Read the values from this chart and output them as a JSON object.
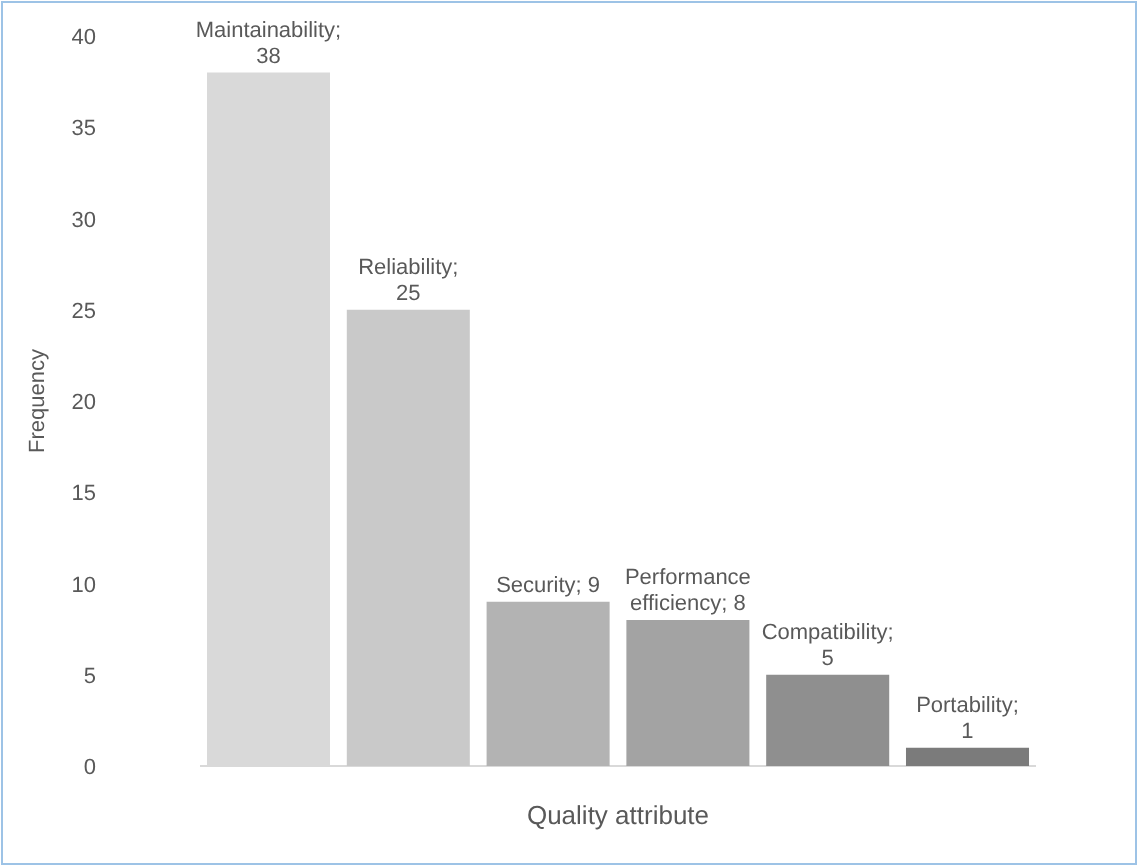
{
  "chart_data": {
    "type": "bar",
    "xlabel": "Quality attribute",
    "ylabel": "Frequency",
    "categories": [
      null,
      null,
      null,
      null,
      null,
      null
    ],
    "values": [
      38,
      25,
      9,
      8,
      5,
      1
    ],
    "colors": [
      "#d9d9d9",
      "#c9c9c9",
      "#b3b3b3",
      "#a3a3a3",
      "#8f8f8f",
      "#7b7b7b"
    ],
    "value_labels": [
      "Maintainability; 38",
      "Reliability; 25",
      "Security; 9",
      "Performance efficiency; 8",
      "Compatibility; 5",
      "Portability; 1"
    ],
    "ylim": [
      0,
      40
    ],
    "yticks": [
      0,
      5,
      10,
      15,
      20,
      25,
      30,
      35,
      40
    ],
    "grid": false
  }
}
